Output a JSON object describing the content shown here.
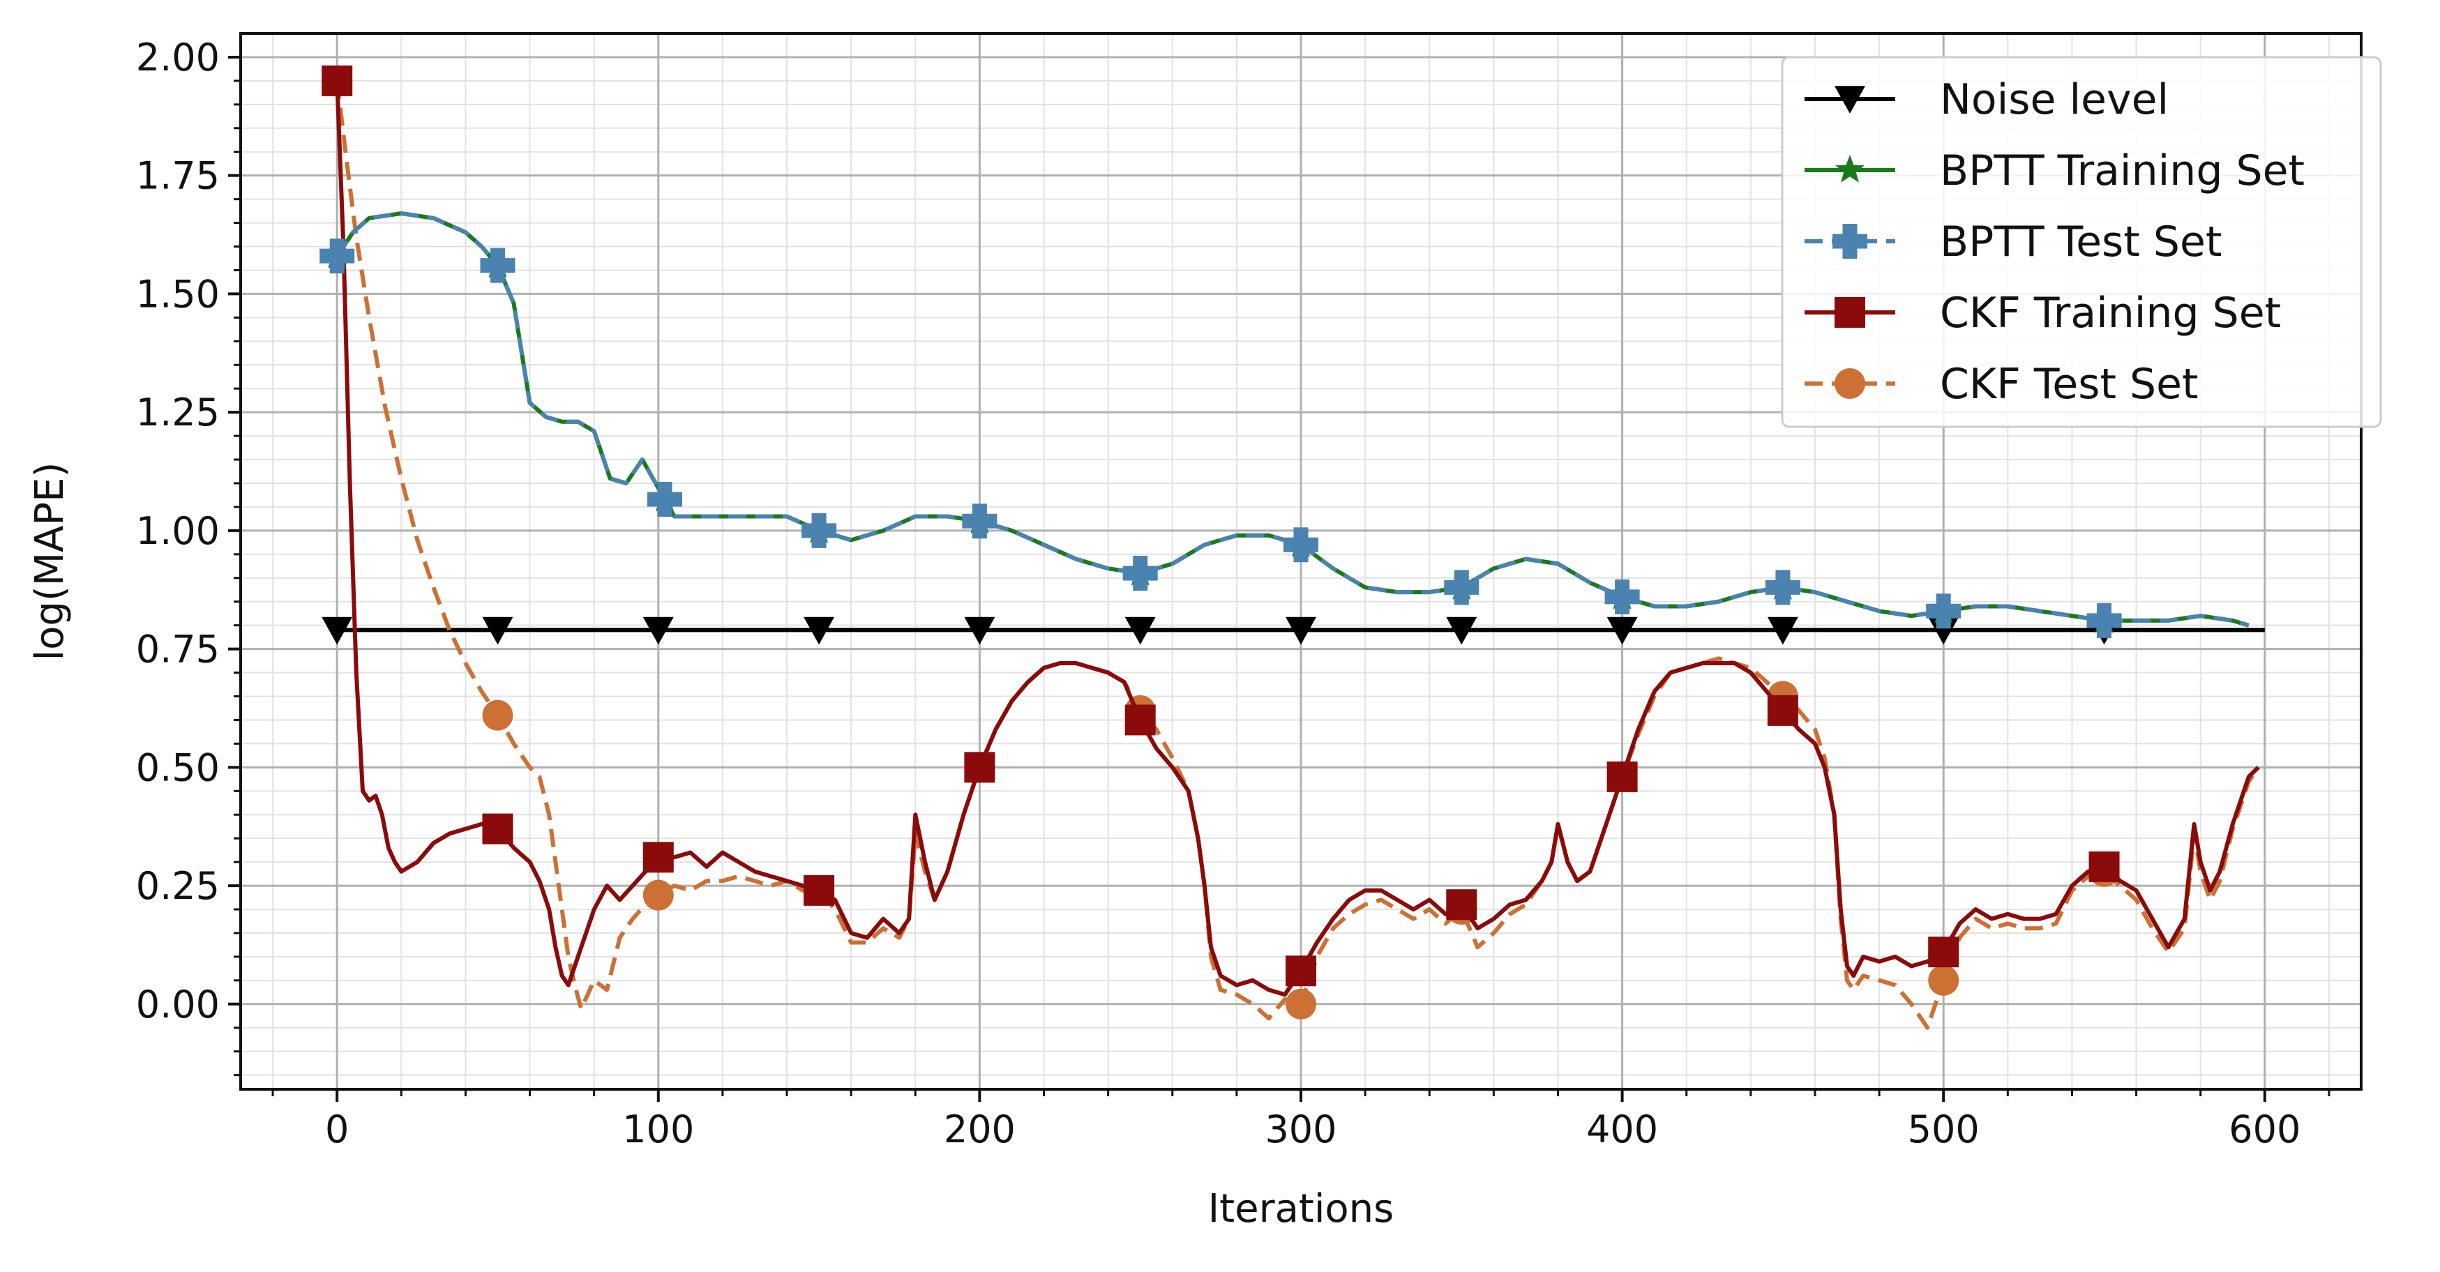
{
  "chart_data": {
    "type": "line",
    "xlabel": "Iterations",
    "ylabel": "log(MAPE)",
    "xlim": [
      -30,
      630
    ],
    "ylim": [
      -0.18,
      2.05
    ],
    "x_ticks": [
      0,
      100,
      200,
      300,
      400,
      500,
      600
    ],
    "x_tick_labels": [
      "0",
      "100",
      "200",
      "300",
      "400",
      "500",
      "600"
    ],
    "y_ticks": [
      0.0,
      0.25,
      0.5,
      0.75,
      1.0,
      1.25,
      1.5,
      1.75,
      2.0
    ],
    "y_tick_labels": [
      "0.00",
      "0.25",
      "0.50",
      "0.75",
      "1.00",
      "1.25",
      "1.50",
      "1.75",
      "2.00"
    ],
    "grid": true,
    "legend_position": "top-right",
    "series": [
      {
        "name": "Noise level",
        "color": "#000000",
        "dash": "solid",
        "marker": "triangle-down",
        "x": [
          0,
          600
        ],
        "y": [
          0.79,
          0.79
        ],
        "marker_x": [
          0,
          50,
          100,
          150,
          200,
          250,
          300,
          350,
          400,
          450,
          500,
          550
        ]
      },
      {
        "name": "BPTT Training Set",
        "color": "#1a7a1a",
        "dash": "solid",
        "marker": "star",
        "x": [
          0,
          5,
          10,
          20,
          30,
          40,
          45,
          50,
          55,
          60,
          65,
          70,
          75,
          80,
          85,
          90,
          95,
          100,
          105,
          110,
          120,
          130,
          140,
          150,
          160,
          170,
          180,
          190,
          200,
          210,
          220,
          230,
          240,
          250,
          260,
          270,
          280,
          290,
          300,
          310,
          320,
          330,
          340,
          350,
          360,
          370,
          380,
          390,
          400,
          410,
          420,
          430,
          440,
          450,
          460,
          470,
          480,
          490,
          500,
          510,
          520,
          530,
          540,
          550,
          560,
          570,
          580,
          590,
          595
        ],
        "y": [
          1.58,
          1.63,
          1.66,
          1.67,
          1.66,
          1.63,
          1.6,
          1.56,
          1.48,
          1.27,
          1.24,
          1.23,
          1.23,
          1.21,
          1.11,
          1.1,
          1.15,
          1.09,
          1.03,
          1.03,
          1.03,
          1.03,
          1.03,
          1.0,
          0.98,
          1.0,
          1.03,
          1.03,
          1.02,
          1.0,
          0.97,
          0.94,
          0.92,
          0.91,
          0.93,
          0.97,
          0.99,
          0.99,
          0.97,
          0.92,
          0.88,
          0.87,
          0.87,
          0.88,
          0.92,
          0.94,
          0.93,
          0.89,
          0.86,
          0.84,
          0.84,
          0.85,
          0.87,
          0.88,
          0.87,
          0.85,
          0.83,
          0.82,
          0.83,
          0.84,
          0.84,
          0.83,
          0.82,
          0.81,
          0.81,
          0.81,
          0.82,
          0.81,
          0.8
        ],
        "marker_x": [
          0,
          50,
          102,
          150,
          200,
          250,
          300,
          350,
          400,
          450,
          500,
          550
        ]
      },
      {
        "name": "BPTT Test Set",
        "color": "#4a82b0",
        "dash": "dashed",
        "marker": "plus",
        "x": [
          0,
          5,
          10,
          20,
          30,
          40,
          45,
          50,
          55,
          60,
          65,
          70,
          75,
          80,
          85,
          90,
          95,
          100,
          105,
          110,
          120,
          130,
          140,
          150,
          160,
          170,
          180,
          190,
          200,
          210,
          220,
          230,
          240,
          250,
          260,
          270,
          280,
          290,
          300,
          310,
          320,
          330,
          340,
          350,
          360,
          370,
          380,
          390,
          400,
          410,
          420,
          430,
          440,
          450,
          460,
          470,
          480,
          490,
          500,
          510,
          520,
          530,
          540,
          550,
          560,
          570,
          580,
          590,
          595
        ],
        "y": [
          1.58,
          1.63,
          1.66,
          1.67,
          1.66,
          1.63,
          1.6,
          1.56,
          1.48,
          1.27,
          1.24,
          1.23,
          1.23,
          1.21,
          1.11,
          1.1,
          1.15,
          1.09,
          1.03,
          1.03,
          1.03,
          1.03,
          1.03,
          1.0,
          0.98,
          1.0,
          1.03,
          1.03,
          1.02,
          1.0,
          0.97,
          0.94,
          0.92,
          0.91,
          0.93,
          0.97,
          0.99,
          0.99,
          0.97,
          0.92,
          0.88,
          0.87,
          0.87,
          0.88,
          0.92,
          0.94,
          0.93,
          0.89,
          0.86,
          0.84,
          0.84,
          0.85,
          0.87,
          0.88,
          0.87,
          0.85,
          0.83,
          0.82,
          0.83,
          0.84,
          0.84,
          0.83,
          0.82,
          0.81,
          0.81,
          0.81,
          0.82,
          0.81,
          0.8
        ],
        "marker_x": [
          0,
          50,
          102,
          150,
          200,
          250,
          300,
          350,
          400,
          450,
          500,
          550
        ]
      },
      {
        "name": "CKF Training Set",
        "color": "#8b0a0a",
        "dash": "solid",
        "marker": "square",
        "x": [
          0,
          2,
          4,
          6,
          8,
          10,
          12,
          14,
          16,
          18,
          20,
          25,
          30,
          35,
          40,
          45,
          50,
          55,
          60,
          63,
          66,
          68,
          70,
          72,
          74,
          76,
          78,
          80,
          84,
          88,
          92,
          96,
          100,
          105,
          110,
          115,
          120,
          125,
          130,
          135,
          140,
          145,
          150,
          155,
          160,
          165,
          170,
          175,
          178,
          180,
          183,
          186,
          190,
          195,
          200,
          205,
          210,
          215,
          220,
          225,
          230,
          235,
          240,
          245,
          250,
          255,
          260,
          265,
          268,
          270,
          272,
          275,
          280,
          285,
          290,
          295,
          300,
          305,
          310,
          315,
          320,
          325,
          330,
          335,
          340,
          345,
          350,
          355,
          360,
          365,
          370,
          375,
          378,
          380,
          383,
          386,
          390,
          395,
          400,
          405,
          410,
          415,
          420,
          425,
          430,
          435,
          440,
          445,
          450,
          455,
          460,
          463,
          466,
          468,
          470,
          472,
          475,
          480,
          485,
          490,
          495,
          500,
          505,
          510,
          515,
          520,
          525,
          530,
          535,
          540,
          545,
          550,
          555,
          560,
          565,
          570,
          575,
          578,
          580,
          583,
          586,
          590,
          595,
          598
        ],
        "y": [
          1.95,
          1.6,
          1.1,
          0.7,
          0.45,
          0.43,
          0.44,
          0.4,
          0.33,
          0.3,
          0.28,
          0.3,
          0.34,
          0.36,
          0.37,
          0.38,
          0.37,
          0.33,
          0.3,
          0.26,
          0.2,
          0.12,
          0.06,
          0.04,
          0.08,
          0.12,
          0.16,
          0.2,
          0.25,
          0.22,
          0.25,
          0.28,
          0.31,
          0.31,
          0.32,
          0.29,
          0.32,
          0.3,
          0.28,
          0.27,
          0.26,
          0.25,
          0.24,
          0.22,
          0.15,
          0.14,
          0.18,
          0.15,
          0.18,
          0.4,
          0.3,
          0.22,
          0.28,
          0.4,
          0.5,
          0.58,
          0.64,
          0.68,
          0.71,
          0.72,
          0.72,
          0.71,
          0.7,
          0.68,
          0.6,
          0.54,
          0.5,
          0.45,
          0.35,
          0.25,
          0.12,
          0.06,
          0.04,
          0.05,
          0.03,
          0.02,
          0.07,
          0.13,
          0.18,
          0.22,
          0.24,
          0.24,
          0.22,
          0.2,
          0.22,
          0.19,
          0.21,
          0.16,
          0.18,
          0.21,
          0.22,
          0.26,
          0.3,
          0.38,
          0.3,
          0.26,
          0.28,
          0.38,
          0.48,
          0.58,
          0.66,
          0.7,
          0.71,
          0.72,
          0.72,
          0.72,
          0.7,
          0.66,
          0.62,
          0.58,
          0.55,
          0.5,
          0.4,
          0.2,
          0.08,
          0.06,
          0.1,
          0.09,
          0.1,
          0.08,
          0.09,
          0.11,
          0.17,
          0.2,
          0.18,
          0.19,
          0.18,
          0.18,
          0.19,
          0.25,
          0.28,
          0.29,
          0.26,
          0.24,
          0.18,
          0.12,
          0.18,
          0.38,
          0.3,
          0.24,
          0.28,
          0.38,
          0.48,
          0.5
        ],
        "marker_x": [
          0,
          50,
          100,
          150,
          200,
          250,
          300,
          350,
          400,
          450,
          500,
          550
        ]
      },
      {
        "name": "CKF Test Set",
        "color": "#cc7033",
        "dash": "dashed",
        "marker": "circle",
        "x": [
          0,
          3,
          6,
          10,
          15,
          20,
          25,
          30,
          35,
          40,
          45,
          50,
          55,
          60,
          63,
          66,
          68,
          70,
          72,
          74,
          76,
          78,
          80,
          84,
          88,
          92,
          96,
          100,
          105,
          110,
          115,
          120,
          125,
          130,
          135,
          140,
          145,
          150,
          155,
          160,
          165,
          170,
          175,
          178,
          180,
          183,
          186,
          190,
          195,
          200,
          205,
          210,
          215,
          220,
          225,
          230,
          235,
          240,
          245,
          250,
          255,
          260,
          265,
          268,
          270,
          272,
          275,
          280,
          285,
          290,
          295,
          300,
          305,
          310,
          315,
          320,
          325,
          330,
          335,
          340,
          345,
          350,
          355,
          360,
          365,
          370,
          375,
          378,
          380,
          383,
          386,
          390,
          395,
          400,
          405,
          410,
          415,
          420,
          425,
          430,
          435,
          440,
          445,
          450,
          455,
          460,
          463,
          466,
          468,
          470,
          472,
          475,
          480,
          485,
          490,
          495,
          500,
          505,
          510,
          515,
          520,
          525,
          530,
          535,
          540,
          545,
          550,
          555,
          560,
          565,
          570,
          575,
          578,
          580,
          583,
          586,
          590,
          595,
          598
        ],
        "y": [
          1.95,
          1.78,
          1.62,
          1.45,
          1.26,
          1.11,
          0.98,
          0.88,
          0.79,
          0.72,
          0.66,
          0.61,
          0.55,
          0.5,
          0.48,
          0.4,
          0.3,
          0.2,
          0.1,
          0.04,
          -0.01,
          0.02,
          0.05,
          0.03,
          0.14,
          0.18,
          0.21,
          0.23,
          0.25,
          0.24,
          0.26,
          0.26,
          0.27,
          0.26,
          0.25,
          0.26,
          0.24,
          0.24,
          0.2,
          0.13,
          0.13,
          0.16,
          0.14,
          0.18,
          0.36,
          0.28,
          0.22,
          0.28,
          0.4,
          0.5,
          0.58,
          0.64,
          0.68,
          0.71,
          0.72,
          0.72,
          0.71,
          0.7,
          0.68,
          0.62,
          0.58,
          0.52,
          0.45,
          0.35,
          0.25,
          0.1,
          0.03,
          0.02,
          0.0,
          -0.03,
          0.01,
          0.0,
          0.1,
          0.16,
          0.19,
          0.21,
          0.22,
          0.2,
          0.18,
          0.2,
          0.17,
          0.2,
          0.12,
          0.15,
          0.19,
          0.21,
          0.26,
          0.3,
          0.38,
          0.3,
          0.26,
          0.28,
          0.38,
          0.48,
          0.57,
          0.65,
          0.7,
          0.71,
          0.72,
          0.73,
          0.72,
          0.71,
          0.68,
          0.65,
          0.62,
          0.58,
          0.52,
          0.4,
          0.18,
          0.05,
          0.03,
          0.06,
          0.05,
          0.04,
          0.0,
          -0.05,
          0.05,
          0.14,
          0.18,
          0.16,
          0.17,
          0.16,
          0.16,
          0.17,
          0.24,
          0.27,
          0.28,
          0.25,
          0.22,
          0.16,
          0.11,
          0.16,
          0.36,
          0.28,
          0.22,
          0.26,
          0.37,
          0.47,
          0.5
        ],
        "marker_x": [
          0,
          50,
          100,
          150,
          200,
          250,
          300,
          350,
          400,
          450,
          500,
          550
        ]
      }
    ]
  }
}
